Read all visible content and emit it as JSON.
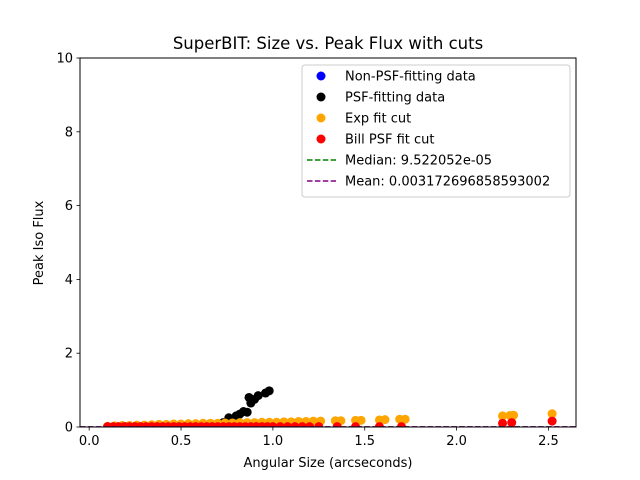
{
  "chart_data": {
    "type": "scatter",
    "title": "SuperBIT: Size vs. Peak Flux with cuts",
    "xlabel": "Angular Size (arcseconds)",
    "ylabel": "Peak Iso Flux",
    "xlim": [
      -0.05,
      2.65
    ],
    "ylim": [
      0,
      10
    ],
    "x_ticks": [
      0.0,
      0.5,
      1.0,
      1.5,
      2.0,
      2.5
    ],
    "x_tick_labels": [
      "0.0",
      "0.5",
      "1.0",
      "1.5",
      "2.0",
      "2.5"
    ],
    "y_ticks": [
      0,
      2,
      4,
      6,
      8,
      10
    ],
    "y_tick_labels": [
      "0",
      "2",
      "4",
      "6",
      "8",
      "10"
    ],
    "grid": false,
    "legend_position": "upper-right",
    "series": [
      {
        "name": "Non-PSF-fitting data",
        "color": "#0000ff",
        "kind": "scatter",
        "points": []
      },
      {
        "name": "PSF-fitting data",
        "color": "#000000",
        "kind": "scatter",
        "points": [
          [
            0.1,
            0.01
          ],
          [
            0.15,
            0.01
          ],
          [
            0.2,
            0.01
          ],
          [
            0.25,
            0.02
          ],
          [
            0.3,
            0.02
          ],
          [
            0.35,
            0.02
          ],
          [
            0.4,
            0.02
          ],
          [
            0.45,
            0.03
          ],
          [
            0.5,
            0.03
          ],
          [
            0.55,
            0.03
          ],
          [
            0.6,
            0.04
          ],
          [
            0.65,
            0.06
          ],
          [
            0.7,
            0.08
          ],
          [
            0.73,
            0.12
          ],
          [
            0.76,
            0.25
          ],
          [
            0.78,
            0.2
          ],
          [
            0.8,
            0.3
          ],
          [
            0.82,
            0.35
          ],
          [
            0.84,
            0.42
          ],
          [
            0.86,
            0.4
          ],
          [
            0.87,
            0.8
          ],
          [
            0.88,
            0.65
          ],
          [
            0.9,
            0.75
          ],
          [
            0.92,
            0.85
          ],
          [
            0.96,
            0.92
          ],
          [
            0.98,
            0.98
          ]
        ]
      },
      {
        "name": "Exp fit cut",
        "color": "#ffa500",
        "kind": "scatter",
        "points": [
          [
            0.1,
            0.02
          ],
          [
            0.14,
            0.03
          ],
          [
            0.18,
            0.04
          ],
          [
            0.22,
            0.04
          ],
          [
            0.26,
            0.05
          ],
          [
            0.3,
            0.05
          ],
          [
            0.34,
            0.06
          ],
          [
            0.38,
            0.07
          ],
          [
            0.42,
            0.07
          ],
          [
            0.46,
            0.08
          ],
          [
            0.5,
            0.08
          ],
          [
            0.54,
            0.09
          ],
          [
            0.58,
            0.09
          ],
          [
            0.62,
            0.1
          ],
          [
            0.66,
            0.1
          ],
          [
            0.7,
            0.1
          ],
          [
            0.74,
            0.11
          ],
          [
            0.78,
            0.11
          ],
          [
            0.82,
            0.12
          ],
          [
            0.86,
            0.12
          ],
          [
            0.9,
            0.12
          ],
          [
            0.94,
            0.13
          ],
          [
            0.98,
            0.13
          ],
          [
            1.02,
            0.13
          ],
          [
            1.06,
            0.14
          ],
          [
            1.1,
            0.14
          ],
          [
            1.14,
            0.15
          ],
          [
            1.18,
            0.15
          ],
          [
            1.22,
            0.16
          ],
          [
            1.26,
            0.16
          ],
          [
            1.34,
            0.17
          ],
          [
            1.37,
            0.17
          ],
          [
            1.45,
            0.18
          ],
          [
            1.48,
            0.18
          ],
          [
            1.58,
            0.19
          ],
          [
            1.61,
            0.2
          ],
          [
            1.69,
            0.21
          ],
          [
            1.72,
            0.21
          ],
          [
            2.25,
            0.3
          ],
          [
            2.29,
            0.31
          ],
          [
            2.31,
            0.32
          ],
          [
            2.52,
            0.36
          ]
        ]
      },
      {
        "name": "Bill PSF fit cut",
        "color": "#ff0000",
        "kind": "scatter",
        "points": [
          [
            0.1,
            0.01
          ],
          [
            0.13,
            0.01
          ],
          [
            0.16,
            0.01
          ],
          [
            0.19,
            0.01
          ],
          [
            0.22,
            0.01
          ],
          [
            0.25,
            0.01
          ],
          [
            0.28,
            0.01
          ],
          [
            0.31,
            0.01
          ],
          [
            0.34,
            0.01
          ],
          [
            0.37,
            0.01
          ],
          [
            0.4,
            0.01
          ],
          [
            0.43,
            0.01
          ],
          [
            0.46,
            0.01
          ],
          [
            0.49,
            0.01
          ],
          [
            0.52,
            0.01
          ],
          [
            0.55,
            0.01
          ],
          [
            0.58,
            0.01
          ],
          [
            0.61,
            0.01
          ],
          [
            0.64,
            0.01
          ],
          [
            0.67,
            0.01
          ],
          [
            0.7,
            0.01
          ],
          [
            0.73,
            0.01
          ],
          [
            0.76,
            0.01
          ],
          [
            0.79,
            0.01
          ],
          [
            0.82,
            0.01
          ],
          [
            0.85,
            0.01
          ],
          [
            0.88,
            0.01
          ],
          [
            0.91,
            0.01
          ],
          [
            0.94,
            0.01
          ],
          [
            0.97,
            0.01
          ],
          [
            1.0,
            0.01
          ],
          [
            1.04,
            0.01
          ],
          [
            1.08,
            0.01
          ],
          [
            1.12,
            0.01
          ],
          [
            1.16,
            0.01
          ],
          [
            1.2,
            0.01
          ],
          [
            1.25,
            0.01
          ],
          [
            1.35,
            0.01
          ],
          [
            1.45,
            0.01
          ],
          [
            1.58,
            0.01
          ],
          [
            1.7,
            0.01
          ],
          [
            2.25,
            0.1
          ],
          [
            2.3,
            0.12
          ],
          [
            2.52,
            0.16
          ]
        ]
      },
      {
        "name": "Median: 9.522052e-05",
        "color": "#008000",
        "kind": "hline",
        "value": 9.522052e-05
      },
      {
        "name": "Mean: 0.003172696858593002",
        "color": "#800080",
        "kind": "hline",
        "value": 0.003172696858593002
      }
    ]
  }
}
